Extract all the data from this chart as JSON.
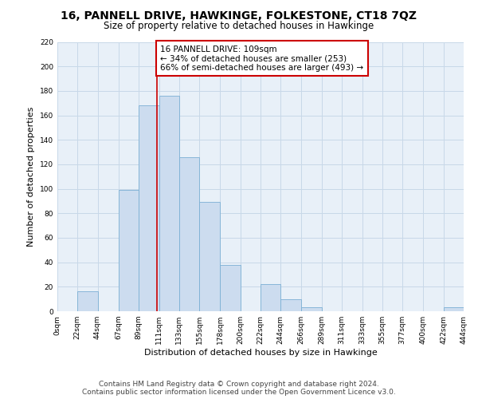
{
  "title": "16, PANNELL DRIVE, HAWKINGE, FOLKESTONE, CT18 7QZ",
  "subtitle": "Size of property relative to detached houses in Hawkinge",
  "xlabel": "Distribution of detached houses by size in Hawkinge",
  "ylabel": "Number of detached properties",
  "bar_edges": [
    0,
    22,
    44,
    67,
    89,
    111,
    133,
    155,
    178,
    200,
    222,
    244,
    266,
    289,
    311,
    333,
    355,
    377,
    400,
    422,
    444
  ],
  "bar_heights": [
    0,
    16,
    0,
    99,
    168,
    176,
    126,
    89,
    38,
    0,
    22,
    10,
    3,
    0,
    0,
    0,
    0,
    0,
    0,
    3
  ],
  "tick_labels": [
    "0sqm",
    "22sqm",
    "44sqm",
    "67sqm",
    "89sqm",
    "111sqm",
    "133sqm",
    "155sqm",
    "178sqm",
    "200sqm",
    "222sqm",
    "244sqm",
    "266sqm",
    "289sqm",
    "311sqm",
    "333sqm",
    "355sqm",
    "377sqm",
    "400sqm",
    "422sqm",
    "444sqm"
  ],
  "bar_color": "#ccdcef",
  "bar_edge_color": "#7bafd4",
  "reference_line_x": 109,
  "reference_line_color": "#cc0000",
  "annotation_line1": "16 PANNELL DRIVE: 109sqm",
  "annotation_line2": "← 34% of detached houses are smaller (253)",
  "annotation_line3": "66% of semi-detached houses are larger (493) →",
  "annotation_box_color": "#cc0000",
  "ylim": [
    0,
    220
  ],
  "yticks": [
    0,
    20,
    40,
    60,
    80,
    100,
    120,
    140,
    160,
    180,
    200,
    220
  ],
  "footer_text": "Contains HM Land Registry data © Crown copyright and database right 2024.\nContains public sector information licensed under the Open Government Licence v3.0.",
  "background_color": "#ffffff",
  "plot_bg_color": "#e8f0f8",
  "grid_color": "#c8d8e8",
  "title_fontsize": 10,
  "subtitle_fontsize": 8.5,
  "axis_label_fontsize": 8,
  "tick_fontsize": 6.5,
  "annotation_fontsize": 7.5,
  "footer_fontsize": 6.5
}
